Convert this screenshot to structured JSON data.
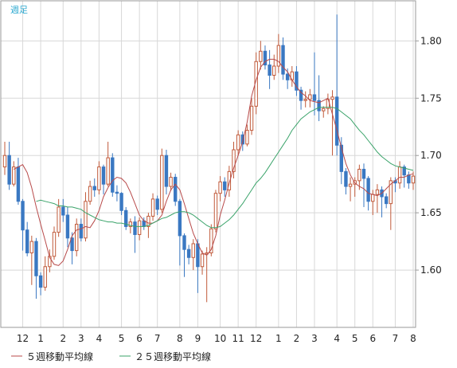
{
  "period_label": "週足",
  "legend": [
    {
      "label": "５週移動平均線",
      "color": "#b84a4a"
    },
    {
      "label": "２５週移動平均線",
      "color": "#3aa36a"
    }
  ],
  "colors": {
    "up": "#c05a3a",
    "down": "#3a78c2",
    "ma5": "#b84a4a",
    "ma25": "#3aa36a",
    "grid": "#d8d8d8",
    "frame": "#9a9a9a",
    "period_label": "#2aa8d0"
  },
  "chart_data": {
    "type": "candlestick",
    "title": "",
    "xlabel": "",
    "ylabel": "",
    "ylim": [
      1.55,
      1.835
    ],
    "y_ticks": [
      "1.60",
      "1.65",
      "1.70",
      "1.75",
      "1.80"
    ],
    "grid": true,
    "x_ticks": [
      {
        "label": "12",
        "index": 4
      },
      {
        "label": "1",
        "index": 8
      },
      {
        "label": "2",
        "index": 13
      },
      {
        "label": "3",
        "index": 17
      },
      {
        "label": "4",
        "index": 21
      },
      {
        "label": "5",
        "index": 26
      },
      {
        "label": "6",
        "index": 30
      },
      {
        "label": "7",
        "index": 34
      },
      {
        "label": "8",
        "index": 39
      },
      {
        "label": "9",
        "index": 43
      },
      {
        "label": "10",
        "index": 48
      },
      {
        "label": "11",
        "index": 52
      },
      {
        "label": "12",
        "index": 56
      },
      {
        "label": "1",
        "index": 61
      },
      {
        "label": "2",
        "index": 65
      },
      {
        "label": "3",
        "index": 69
      },
      {
        "label": "4",
        "index": 74
      },
      {
        "label": "5",
        "index": 78
      },
      {
        "label": "6",
        "index": 82
      },
      {
        "label": "7",
        "index": 87
      },
      {
        "label": "8",
        "index": 91
      }
    ],
    "closes": [
      1.7,
      1.675,
      1.69,
      1.66,
      1.635,
      1.615,
      1.625,
      1.595,
      1.585,
      1.603,
      1.612,
      1.633,
      1.655,
      1.648,
      1.628,
      1.617,
      1.64,
      1.628,
      1.66,
      1.673,
      1.67,
      1.69,
      1.675,
      1.698,
      1.668,
      1.667,
      1.652,
      1.638,
      1.642,
      1.631,
      1.643,
      1.638,
      1.647,
      1.662,
      1.653,
      1.7,
      1.673,
      1.681,
      1.66,
      1.63,
      1.618,
      1.611,
      1.623,
      1.603,
      1.614,
      1.615,
      1.636,
      1.667,
      1.677,
      1.67,
      1.686,
      1.705,
      1.718,
      1.71,
      1.722,
      1.743,
      1.782,
      1.791,
      1.779,
      1.77,
      1.778,
      1.796,
      1.771,
      1.766,
      1.773,
      1.757,
      1.748,
      1.749,
      1.753,
      1.748,
      1.739,
      1.741,
      1.749,
      1.751,
      1.709,
      1.686,
      1.673,
      1.675,
      1.678,
      1.688,
      1.68,
      1.66,
      1.666,
      1.67,
      1.664,
      1.658,
      1.678,
      1.676,
      1.69,
      1.683,
      1.676,
      1.682
    ],
    "series": [
      {
        "name": "ohlc",
        "open": [
          1.69,
          1.7,
          1.675,
          1.69,
          1.66,
          1.635,
          1.615,
          1.625,
          1.595,
          1.585,
          1.603,
          1.612,
          1.633,
          1.655,
          1.648,
          1.628,
          1.617,
          1.64,
          1.628,
          1.66,
          1.673,
          1.67,
          1.69,
          1.675,
          1.698,
          1.668,
          1.667,
          1.652,
          1.638,
          1.642,
          1.631,
          1.643,
          1.638,
          1.647,
          1.662,
          1.653,
          1.7,
          1.673,
          1.681,
          1.66,
          1.63,
          1.618,
          1.611,
          1.623,
          1.603,
          1.614,
          1.615,
          1.636,
          1.667,
          1.677,
          1.67,
          1.686,
          1.705,
          1.718,
          1.71,
          1.722,
          1.743,
          1.782,
          1.791,
          1.779,
          1.77,
          1.778,
          1.796,
          1.771,
          1.766,
          1.773,
          1.757,
          1.748,
          1.749,
          1.753,
          1.748,
          1.739,
          1.741,
          1.749,
          1.751,
          1.709,
          1.686,
          1.673,
          1.675,
          1.678,
          1.688,
          1.68,
          1.66,
          1.666,
          1.67,
          1.664,
          1.658,
          1.678,
          1.676,
          1.69,
          1.683,
          1.676
        ],
        "high": [
          1.712,
          1.712,
          1.695,
          1.698,
          1.662,
          1.642,
          1.63,
          1.628,
          1.598,
          1.612,
          1.618,
          1.638,
          1.662,
          1.662,
          1.655,
          1.633,
          1.645,
          1.645,
          1.668,
          1.678,
          1.68,
          1.695,
          1.692,
          1.712,
          1.702,
          1.674,
          1.668,
          1.655,
          1.645,
          1.647,
          1.646,
          1.646,
          1.65,
          1.667,
          1.665,
          1.706,
          1.705,
          1.685,
          1.684,
          1.662,
          1.632,
          1.622,
          1.627,
          1.627,
          1.617,
          1.62,
          1.64,
          1.67,
          1.682,
          1.681,
          1.691,
          1.712,
          1.722,
          1.721,
          1.727,
          1.75,
          1.79,
          1.8,
          1.796,
          1.792,
          1.788,
          1.806,
          1.803,
          1.776,
          1.778,
          1.778,
          1.76,
          1.756,
          1.758,
          1.79,
          1.77,
          1.743,
          1.754,
          1.757,
          1.823,
          1.716,
          1.689,
          1.681,
          1.681,
          1.692,
          1.693,
          1.682,
          1.67,
          1.675,
          1.673,
          1.667,
          1.681,
          1.681,
          1.695,
          1.692,
          1.686,
          1.686
        ],
        "low": [
          1.683,
          1.67,
          1.673,
          1.657,
          1.617,
          1.612,
          1.587,
          1.575,
          1.578,
          1.582,
          1.598,
          1.609,
          1.629,
          1.642,
          1.62,
          1.605,
          1.612,
          1.625,
          1.625,
          1.657,
          1.664,
          1.666,
          1.666,
          1.673,
          1.664,
          1.66,
          1.648,
          1.635,
          1.632,
          1.615,
          1.626,
          1.635,
          1.628,
          1.643,
          1.648,
          1.65,
          1.666,
          1.669,
          1.656,
          1.604,
          1.594,
          1.605,
          1.6,
          1.58,
          1.596,
          1.572,
          1.612,
          1.633,
          1.66,
          1.664,
          1.664,
          1.68,
          1.7,
          1.704,
          1.708,
          1.718,
          1.736,
          1.775,
          1.775,
          1.758,
          1.766,
          1.772,
          1.766,
          1.758,
          1.76,
          1.752,
          1.74,
          1.742,
          1.742,
          1.735,
          1.73,
          1.733,
          1.736,
          1.7,
          1.7,
          1.675,
          1.666,
          1.66,
          1.664,
          1.67,
          1.655,
          1.652,
          1.648,
          1.65,
          1.646,
          1.654,
          1.635,
          1.668,
          1.671,
          1.672,
          1.671,
          1.67
        ]
      },
      {
        "name": "５週移動平均線",
        "values": [
          1.688,
          1.69,
          1.692,
          1.685,
          1.672,
          1.655,
          1.64,
          1.626,
          1.611,
          1.605,
          1.604,
          1.608,
          1.618,
          1.63,
          1.635,
          1.636,
          1.638,
          1.637,
          1.643,
          1.652,
          1.664,
          1.672,
          1.678,
          1.681,
          1.68,
          1.676,
          1.668,
          1.658,
          1.648,
          1.643,
          1.641,
          1.641,
          1.643,
          1.648,
          1.66,
          1.67,
          1.675,
          1.67,
          1.658,
          1.645,
          1.632,
          1.623,
          1.615,
          1.613,
          1.618,
          1.63,
          1.648,
          1.661,
          1.676,
          1.689,
          1.7,
          1.712,
          1.729,
          1.752,
          1.766,
          1.777,
          1.782,
          1.784,
          1.784,
          1.782,
          1.777,
          1.773,
          1.766,
          1.76,
          1.755,
          1.752,
          1.748,
          1.747,
          1.746,
          1.748,
          1.75,
          1.736,
          1.722,
          1.707,
          1.693,
          1.683,
          1.676,
          1.673,
          1.671,
          1.667,
          1.666,
          1.665,
          1.667,
          1.671,
          1.675,
          1.678,
          1.681,
          1.681,
          1.683,
          1.684
        ]
      },
      {
        "name": "２５週移動平均線",
        "values": [
          1.66,
          1.661,
          1.66,
          1.659,
          1.658,
          1.656,
          1.656,
          1.655,
          1.655,
          1.654,
          1.653,
          1.65,
          1.648,
          1.646,
          1.644,
          1.643,
          1.642,
          1.642,
          1.641,
          1.641,
          1.64,
          1.639,
          1.638,
          1.638,
          1.638,
          1.639,
          1.641,
          1.643,
          1.645,
          1.646,
          1.648,
          1.65,
          1.651,
          1.651,
          1.65,
          1.648,
          1.645,
          1.642,
          1.639,
          1.637,
          1.637,
          1.638,
          1.641,
          1.644,
          1.648,
          1.653,
          1.658,
          1.664,
          1.67,
          1.676,
          1.68,
          1.685,
          1.691,
          1.697,
          1.703,
          1.709,
          1.715,
          1.722,
          1.727,
          1.732,
          1.735,
          1.738,
          1.74,
          1.742,
          1.742,
          1.742,
          1.742,
          1.741,
          1.738,
          1.735,
          1.732,
          1.727,
          1.722,
          1.718,
          1.713,
          1.708,
          1.703,
          1.699,
          1.696,
          1.693,
          1.691,
          1.69,
          1.689,
          1.688,
          1.687
        ]
      }
    ]
  }
}
